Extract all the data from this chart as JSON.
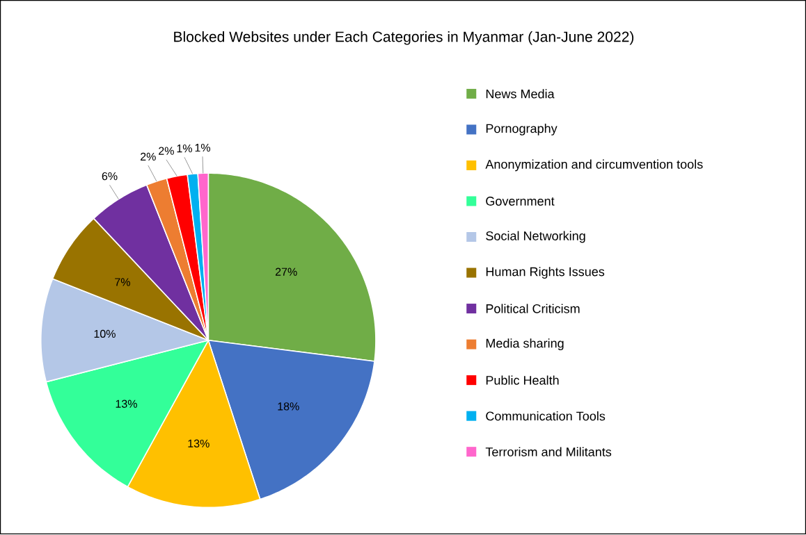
{
  "chart_data": {
    "type": "pie",
    "title": "Blocked Websites under Each Categories in Myanmar (Jan-June 2022)",
    "categories": [
      "News Media",
      "Pornography",
      "Anonymization and circumvention tools",
      "Government",
      "Social Networking",
      "Human Rights Issues",
      "Political Criticism",
      "Media sharing",
      "Public Health",
      "Communication Tools",
      "Terrorism and Militants"
    ],
    "values": [
      27,
      18,
      13,
      13,
      10,
      7,
      6,
      2,
      2,
      1,
      1
    ],
    "value_labels": [
      "27%",
      "18%",
      "13%",
      "13%",
      "10%",
      "7%",
      "6%",
      "2%",
      "2%",
      "1%",
      "1%"
    ],
    "colors": [
      "#70ad47",
      "#4472c4",
      "#ffc000",
      "#33ff99",
      "#b4c7e7",
      "#997300",
      "#7030a0",
      "#ed7d31",
      "#ff0000",
      "#00b0f0",
      "#ff66cc"
    ],
    "legend": "right"
  }
}
